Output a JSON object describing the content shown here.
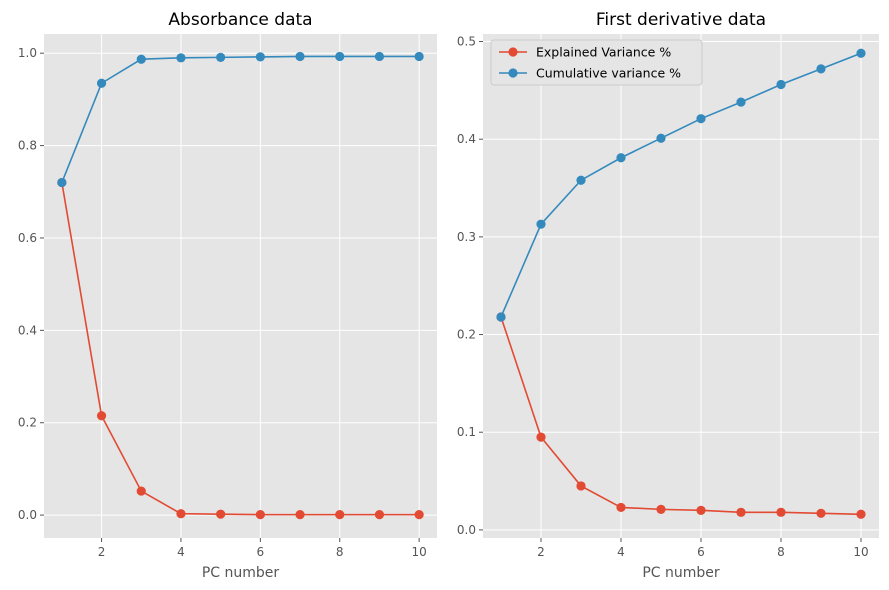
{
  "colors": {
    "explained": "#E24A33",
    "cumulative": "#348ABD",
    "axes_bg": "#E5E5E5",
    "grid": "#FFFFFF",
    "legend_bg": "#E5E5E5"
  },
  "chart_data": [
    {
      "type": "line",
      "title": "Absorbance data",
      "xlabel": "PC number",
      "ylabel": "",
      "xlim": [
        0.55,
        10.45
      ],
      "ylim": [
        -0.0496,
        1.0416
      ],
      "xticks": [
        2,
        4,
        6,
        8,
        10
      ],
      "yticks": [
        0.0,
        0.2,
        0.4,
        0.6,
        0.8,
        1.0
      ],
      "ytick_labels": [
        "0.0",
        "0.2",
        "0.4",
        "0.6",
        "0.8",
        "1.0"
      ],
      "grid": true,
      "legend": null,
      "x": [
        1,
        2,
        3,
        4,
        5,
        6,
        7,
        8,
        9,
        10
      ],
      "series": [
        {
          "name": "Explained Variance %",
          "values": [
            0.72,
            0.215,
            0.052,
            0.003,
            0.002,
            0.001,
            0.001,
            0.001,
            0.001,
            0.001
          ]
        },
        {
          "name": "Cumulative variance %",
          "values": [
            0.72,
            0.935,
            0.987,
            0.99,
            0.991,
            0.992,
            0.993,
            0.993,
            0.993,
            0.993
          ]
        }
      ]
    },
    {
      "type": "line",
      "title": "First derivative data",
      "xlabel": "PC number",
      "ylabel": "",
      "xlim": [
        0.55,
        10.45
      ],
      "ylim": [
        -0.0083,
        0.5077
      ],
      "xticks": [
        2,
        4,
        6,
        8,
        10
      ],
      "yticks": [
        0.0,
        0.1,
        0.2,
        0.3,
        0.4,
        0.5
      ],
      "ytick_labels": [
        "0.0",
        "0.1",
        "0.2",
        "0.3",
        "0.4",
        "0.5"
      ],
      "grid": true,
      "legend": "top-left",
      "x": [
        1,
        2,
        3,
        4,
        5,
        6,
        7,
        8,
        9,
        10
      ],
      "series": [
        {
          "name": "Explained Variance %",
          "values": [
            0.218,
            0.095,
            0.045,
            0.023,
            0.021,
            0.02,
            0.018,
            0.018,
            0.017,
            0.016
          ]
        },
        {
          "name": "Cumulative variance %",
          "values": [
            0.218,
            0.313,
            0.358,
            0.381,
            0.401,
            0.421,
            0.438,
            0.456,
            0.472,
            0.488
          ]
        }
      ]
    }
  ]
}
